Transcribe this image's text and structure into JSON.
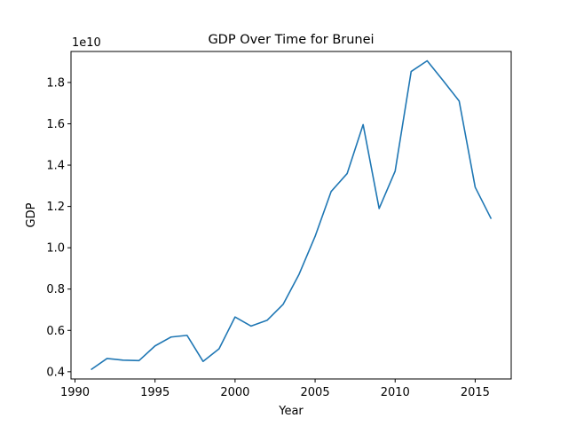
{
  "chart_data": {
    "type": "line",
    "title": "GDP Over Time for Brunei",
    "xlabel": "Year",
    "ylabel": "GDP",
    "y_offset_label": "1e10",
    "x": [
      1991,
      1992,
      1993,
      1994,
      1995,
      1996,
      1997,
      1998,
      1999,
      2000,
      2001,
      2002,
      2003,
      2004,
      2005,
      2006,
      2007,
      2008,
      2009,
      2010,
      2011,
      2012,
      2013,
      2014,
      2015,
      2016
    ],
    "series": [
      {
        "color": "#1f77b4",
        "values": [
          4100000000,
          4640000000,
          4560000000,
          4540000000,
          5250000000,
          5680000000,
          5760000000,
          4500000000,
          5110000000,
          6650000000,
          6210000000,
          6490000000,
          7260000000,
          8720000000,
          10550000000,
          12720000000,
          13590000000,
          15960000000,
          11900000000,
          13710000000,
          18530000000,
          19050000000,
          18090000000,
          17100000000,
          12930000000,
          11400000000
        ]
      }
    ],
    "xlim": [
      1989.75,
      2017.25
    ],
    "ylim": [
      3650000000,
      19500000000
    ],
    "xticks": [
      1990,
      1995,
      2000,
      2005,
      2010,
      2015
    ],
    "yticks": [
      0.4,
      0.6,
      0.8,
      1.0,
      1.2,
      1.4,
      1.6,
      1.8
    ],
    "ytick_scale": 10000000000,
    "grid": false
  }
}
